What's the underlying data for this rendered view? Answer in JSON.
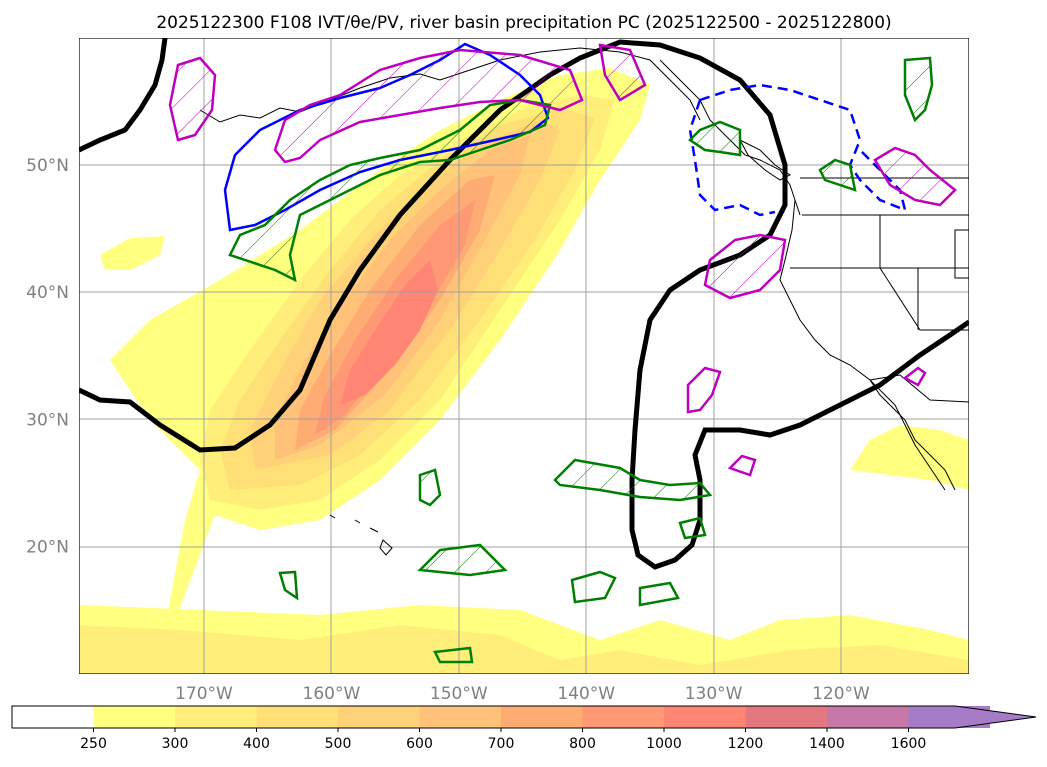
{
  "title": "2025122300 F108 IVT/θe/PV, river basin precipitation PC (2025122500 - 2025122800)",
  "map": {
    "lat_ticks": [
      {
        "value": 50,
        "label": "50°N"
      },
      {
        "value": 40,
        "label": "40°N"
      },
      {
        "value": 30,
        "label": "30°N"
      },
      {
        "value": 20,
        "label": "20°N"
      }
    ],
    "lon_ticks": [
      {
        "value": -170,
        "label": "170°W"
      },
      {
        "value": -160,
        "label": "160°W"
      },
      {
        "value": -150,
        "label": "150°W"
      },
      {
        "value": -140,
        "label": "140°W"
      },
      {
        "value": -130,
        "label": "130°W"
      },
      {
        "value": -120,
        "label": "120°W"
      }
    ],
    "tick_label_color": "#808080",
    "colors": {
      "theta_e": "#000000",
      "pv_positive": "#0000ff",
      "precip_pc_green": "#008000",
      "precip_pc_magenta": "#c000c0",
      "land_outline": "#000000"
    }
  },
  "colorbar": {
    "levels": [
      {
        "label": "250",
        "color": "#ffff80"
      },
      {
        "label": "300",
        "color": "#ffef7a"
      },
      {
        "label": "400",
        "color": "#ffe077"
      },
      {
        "label": "500",
        "color": "#ffd178"
      },
      {
        "label": "600",
        "color": "#ffc278"
      },
      {
        "label": "700",
        "color": "#ffab74"
      },
      {
        "label": "800",
        "color": "#ff9874"
      },
      {
        "label": "1000",
        "color": "#ff8674"
      },
      {
        "label": "1200",
        "color": "#e47880"
      },
      {
        "label": "1400",
        "color": "#c878a8"
      },
      {
        "label": "1600",
        "color": "#a67cc8"
      }
    ],
    "below_color": "#ffffff",
    "extend": "max"
  }
}
